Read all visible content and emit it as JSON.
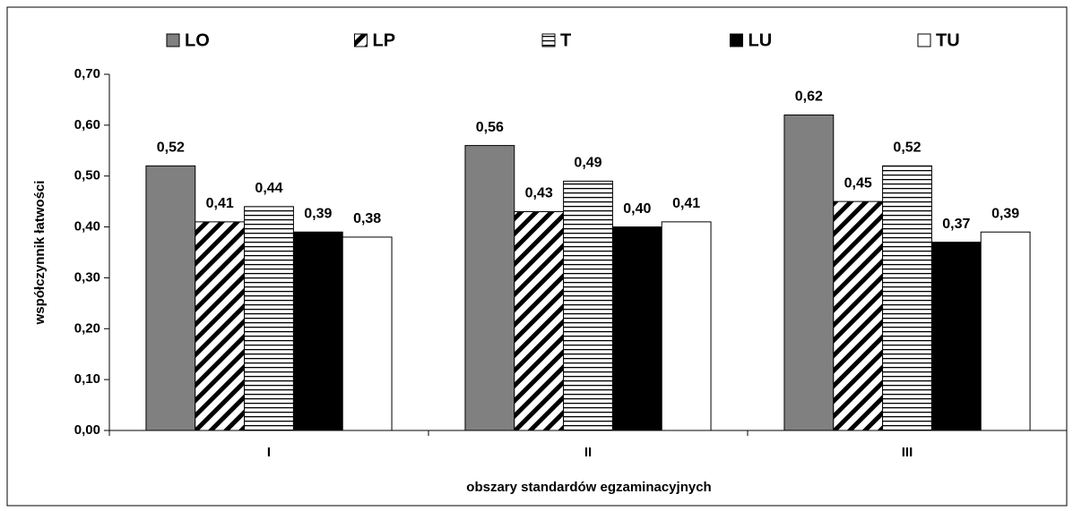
{
  "chart_data": {
    "type": "bar",
    "categories": [
      "I",
      "II",
      "III"
    ],
    "series": [
      {
        "name": "LO",
        "color": "#808080",
        "pattern": "solid",
        "values": [
          0.52,
          0.56,
          0.62
        ],
        "value_labels": [
          "0,52",
          "0,56",
          "0,62"
        ]
      },
      {
        "name": "LP",
        "color": "#000000",
        "pattern": "diagonal",
        "values": [
          0.41,
          0.43,
          0.45
        ],
        "value_labels": [
          "0,41",
          "0,43",
          "0,45"
        ]
      },
      {
        "name": "T",
        "color": "#000000",
        "pattern": "horizontal",
        "values": [
          0.44,
          0.49,
          0.52
        ],
        "value_labels": [
          "0,44",
          "0,49",
          "0,52"
        ]
      },
      {
        "name": "LU",
        "color": "#000000",
        "pattern": "solid",
        "values": [
          0.39,
          0.4,
          0.37
        ],
        "value_labels": [
          "0,39",
          "0,40",
          "0,37"
        ]
      },
      {
        "name": "TU",
        "color": "#ffffff",
        "pattern": "solid",
        "values": [
          0.38,
          0.41,
          0.39
        ],
        "value_labels": [
          "0,38",
          "0,41",
          "0,39"
        ]
      }
    ],
    "ylabel": "współczynnik łatwości",
    "xlabel": "obszary standardów egzaminacyjnych",
    "ylim": [
      0,
      0.7
    ],
    "yticks": [
      {
        "value": 0,
        "label": "0,00"
      },
      {
        "value": 0.1,
        "label": "0,10"
      },
      {
        "value": 0.2,
        "label": "0,20"
      },
      {
        "value": 0.3,
        "label": "0,30"
      },
      {
        "value": 0.4,
        "label": "0,40"
      },
      {
        "value": 0.5,
        "label": "0,50"
      },
      {
        "value": 0.6,
        "label": "0,60"
      },
      {
        "value": 0.7,
        "label": "0,70"
      }
    ],
    "legend": "top"
  }
}
